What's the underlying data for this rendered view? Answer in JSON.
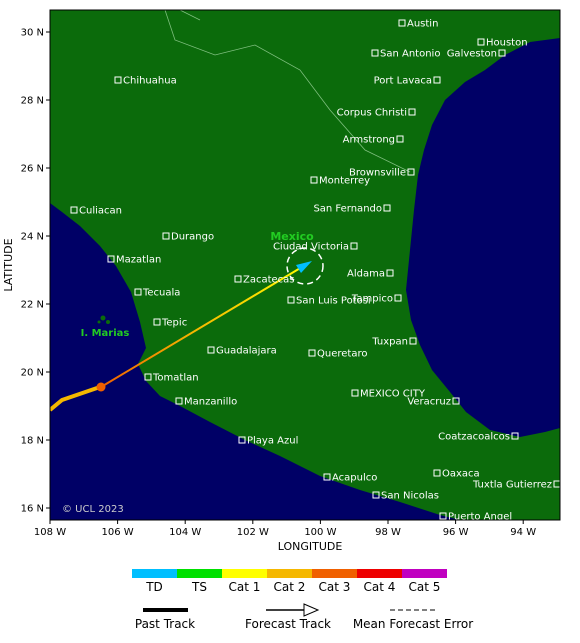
{
  "map": {
    "region_label": "Mexico",
    "island_label": "I. Marias",
    "copyright": "© UCL 2023",
    "x_axis_label": "LONGITUDE",
    "y_axis_label": "LATITUDE",
    "xticks": [
      "108 W",
      "106 W",
      "104 W",
      "102 W",
      "100 W",
      "98 W",
      "96 W",
      "94 W"
    ],
    "yticks": [
      "30 N",
      "28 N",
      "26 N",
      "24 N",
      "22 N",
      "20 N",
      "18 N",
      "16 N"
    ],
    "cities": [
      "Austin",
      "Houston",
      "San Antonio",
      "Galveston",
      "Chihuahua",
      "Port Lavaca",
      "Corpus Christi",
      "Armstrong",
      "Brownsville",
      "Monterrey",
      "San Fernando",
      "Culiacan",
      "Durango",
      "Ciudad Victoria",
      "Mazatlan",
      "Aldama",
      "Zacatecas",
      "Tampico",
      "San Luis Potosi",
      "Tecuala",
      "Tepic",
      "Tuxpan",
      "Guadalajara",
      "Queretaro",
      "Tomatlan",
      "MEXICO CITY",
      "Veracruz",
      "Manzanillo",
      "Coatzacoalcos",
      "Playa Azul",
      "Oaxaca",
      "Acapulco",
      "Tuxtla Gutierrez",
      "San Nicolas",
      "Puerto Angel"
    ]
  },
  "legend": {
    "categories": [
      {
        "label": "TD",
        "color": "#00bfff"
      },
      {
        "label": "TS",
        "color": "#00e000"
      },
      {
        "label": "Cat 1",
        "color": "#ffff00"
      },
      {
        "label": "Cat 2",
        "color": "#f5b800"
      },
      {
        "label": "Cat 3",
        "color": "#f06000"
      },
      {
        "label": "Cat 4",
        "color": "#ee0000"
      },
      {
        "label": "Cat 5",
        "color": "#c000c0"
      }
    ],
    "tracks": [
      "Past Track",
      "Forecast Track",
      "Mean Forecast Error"
    ]
  }
}
